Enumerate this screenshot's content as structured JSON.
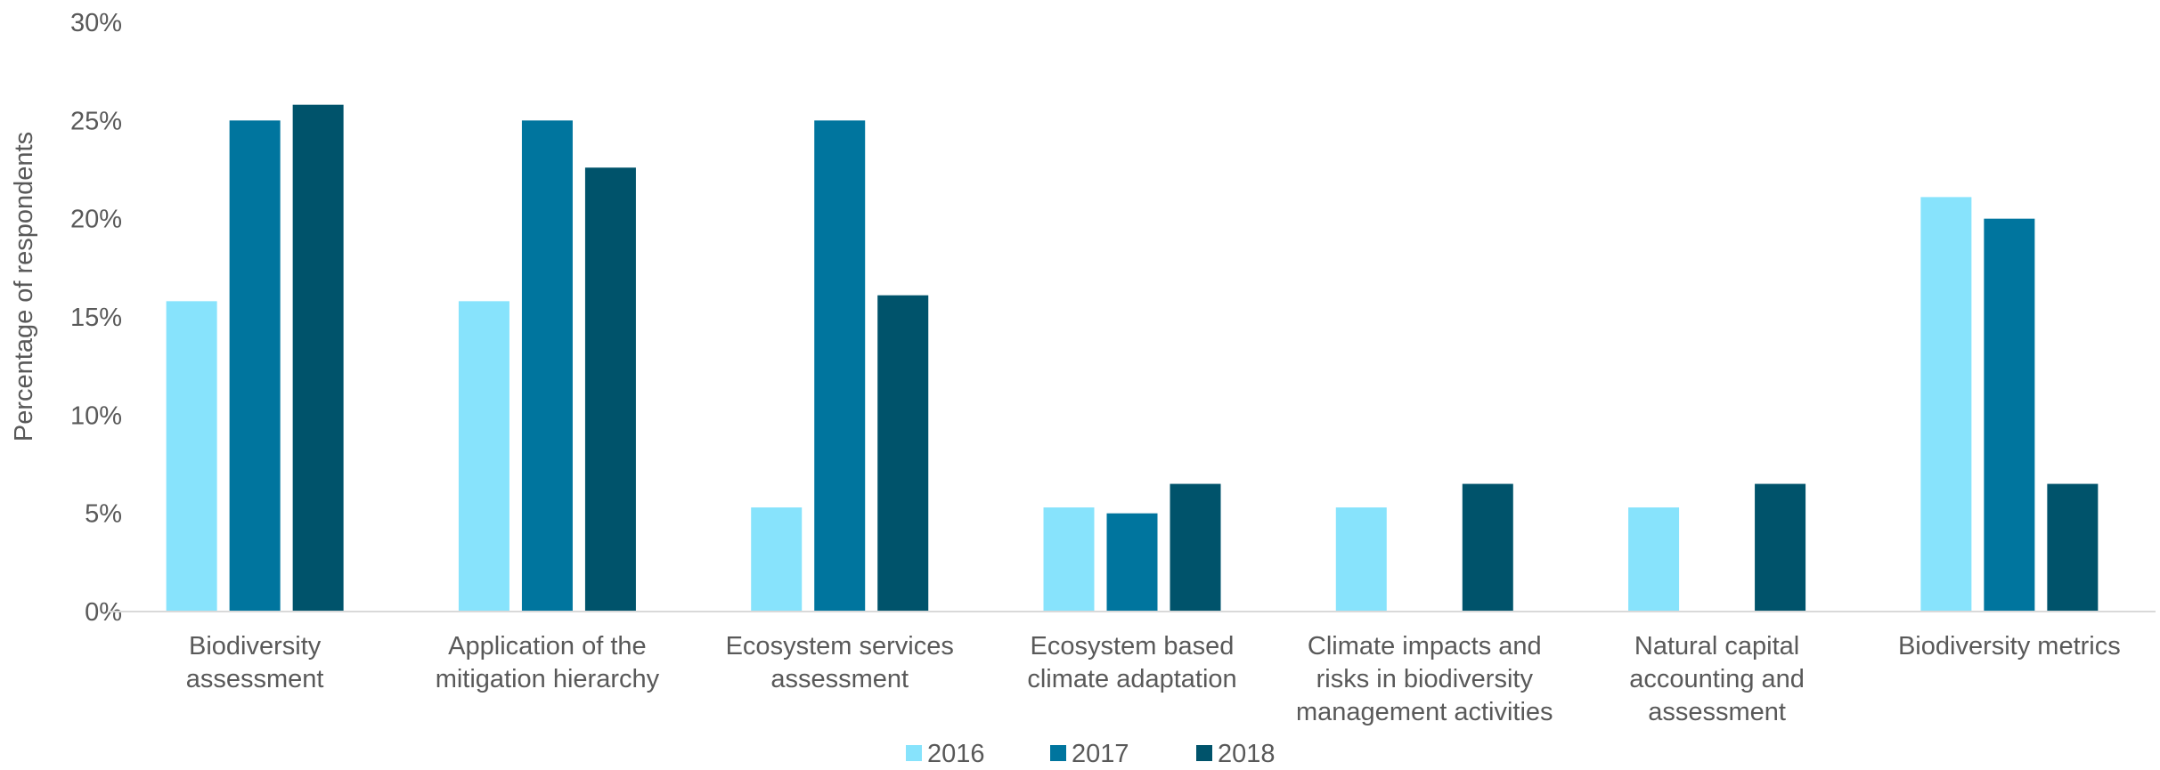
{
  "chart_data": {
    "type": "bar",
    "title": "",
    "xlabel": "",
    "ylabel": "Percentage of respondents",
    "ylim": [
      0,
      30
    ],
    "yticks": [
      "0%",
      "5%",
      "10%",
      "15%",
      "20%",
      "25%",
      "30%"
    ],
    "ytick_values": [
      0,
      5,
      10,
      15,
      20,
      25,
      30
    ],
    "grid": false,
    "legend_position": "bottom",
    "categories": [
      [
        "Biodiversity",
        "assessment"
      ],
      [
        "Application of the",
        "mitigation hierarchy"
      ],
      [
        "Ecosystem services",
        "assessment"
      ],
      [
        "Ecosystem based",
        "climate adaptation"
      ],
      [
        "Climate impacts and",
        "risks in biodiversity",
        "management activities"
      ],
      [
        "Natural capital",
        "accounting and",
        "assessment"
      ],
      [
        "Biodiversity metrics"
      ]
    ],
    "series": [
      {
        "name": "2016",
        "color": "#87E3FC",
        "values": [
          15.8,
          15.8,
          5.3,
          5.3,
          5.3,
          5.3,
          21.1
        ]
      },
      {
        "name": "2017",
        "color": "#00759E",
        "values": [
          25.0,
          25.0,
          25.0,
          5.0,
          0,
          0,
          20.0
        ]
      },
      {
        "name": "2018",
        "color": "#00536B",
        "values": [
          25.8,
          22.6,
          16.1,
          6.5,
          6.5,
          6.5,
          6.5
        ]
      }
    ]
  }
}
